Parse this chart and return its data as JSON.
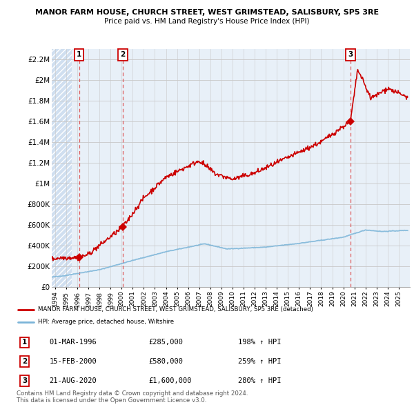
{
  "title1": "MANOR FARM HOUSE, CHURCH STREET, WEST GRIMSTEAD, SALISBURY, SP5 3RE",
  "title2": "Price paid vs. HM Land Registry's House Price Index (HPI)",
  "legend_label1": "MANOR FARM HOUSE, CHURCH STREET, WEST GRIMSTEAD, SALISBURY, SP5 3RE (detached)",
  "legend_label2": "HPI: Average price, detached house, Wiltshire",
  "sale_info": [
    [
      "1",
      "01-MAR-1996",
      "£285,000",
      "198% ↑ HPI"
    ],
    [
      "2",
      "15-FEB-2000",
      "£580,000",
      "259% ↑ HPI"
    ],
    [
      "3",
      "21-AUG-2020",
      "£1,600,000",
      "280% ↑ HPI"
    ]
  ],
  "footer1": "Contains HM Land Registry data © Crown copyright and database right 2024.",
  "footer2": "This data is licensed under the Open Government Licence v3.0.",
  "ylim": [
    0,
    2300000
  ],
  "yticks": [
    0,
    200000,
    400000,
    600000,
    800000,
    1000000,
    1200000,
    1400000,
    1600000,
    1800000,
    2000000,
    2200000
  ],
  "ytick_labels": [
    "£0",
    "£200K",
    "£400K",
    "£600K",
    "£800K",
    "£1M",
    "£1.2M",
    "£1.4M",
    "£1.6M",
    "£1.8M",
    "£2M",
    "£2.2M"
  ],
  "hpi_color": "#7ab4d8",
  "price_color": "#cc0000",
  "background_plain": "#e8f0f8",
  "background_hatch": "#d0dff0",
  "grid_color": "#c8c8c8",
  "sale_years": [
    1996.17,
    2000.12,
    2020.64
  ],
  "sale_prices": [
    285000,
    580000,
    1600000
  ],
  "xmin": 1993.7,
  "xmax": 2026.0
}
